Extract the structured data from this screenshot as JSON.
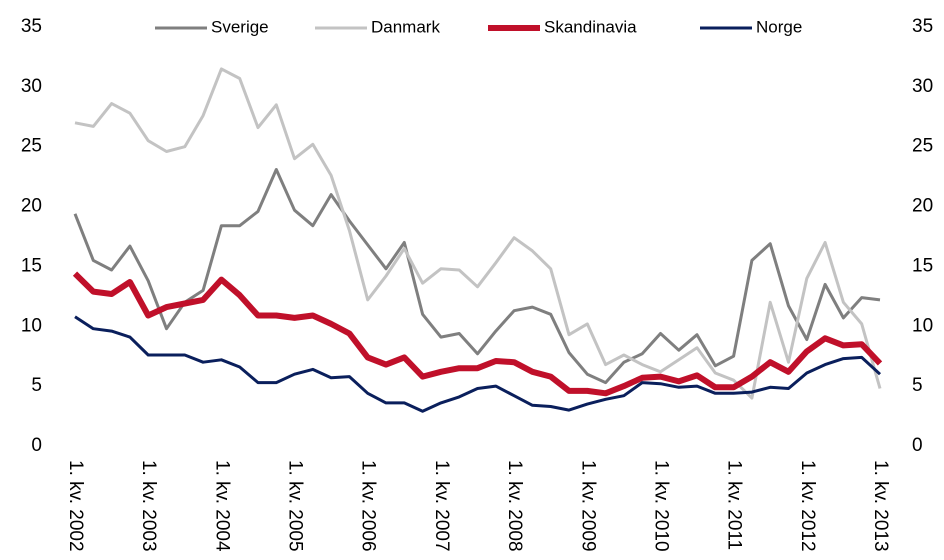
{
  "chart_data": {
    "type": "line",
    "categories": [
      "1. kv. 2002",
      null,
      null,
      null,
      "1. kv. 2003",
      null,
      null,
      null,
      "1. kv. 2004",
      null,
      null,
      null,
      "1. kv. 2005",
      null,
      null,
      null,
      "1. kv. 2006",
      null,
      null,
      null,
      "1. kv. 2007",
      null,
      null,
      null,
      "1. kv. 2008",
      null,
      null,
      null,
      "1. kv. 2009",
      null,
      null,
      null,
      "1. kv. 2010",
      null,
      null,
      null,
      "1. kv. 2011",
      null,
      null,
      null,
      "1. kv. 2012",
      null,
      null,
      null,
      "1. kv. 2013"
    ],
    "series": [
      {
        "name": "Sverige",
        "color": "#7f7f7f",
        "values": [
          19.4,
          15.5,
          14.7,
          16.7,
          13.8,
          9.8,
          12.0,
          13.0,
          18.4,
          18.4,
          19.6,
          23.1,
          19.7,
          18.4,
          21.0,
          18.8,
          16.8,
          14.8,
          17.0,
          11.0,
          9.1,
          9.4,
          7.7,
          9.6,
          11.3,
          11.6,
          11.0,
          7.8,
          6.0,
          5.3,
          7.0,
          7.7,
          9.4,
          8.0,
          9.3,
          6.7,
          7.5,
          15.5,
          16.9,
          11.7,
          8.9,
          13.5,
          10.7,
          12.4,
          12.2
        ]
      },
      {
        "name": "Danmark",
        "color": "#c3c3c3",
        "values": [
          27.0,
          26.7,
          28.6,
          27.8,
          25.5,
          24.6,
          25.0,
          27.6,
          31.5,
          30.7,
          26.6,
          28.5,
          24.0,
          25.2,
          22.6,
          18.0,
          12.2,
          14.2,
          16.5,
          13.6,
          14.8,
          14.7,
          13.3,
          15.3,
          17.4,
          16.3,
          14.8,
          9.3,
          10.2,
          6.8,
          7.6,
          6.8,
          6.2,
          7.2,
          8.2,
          6.1,
          5.5,
          4.0,
          12.0,
          7.0,
          14.0,
          17.0,
          12.0,
          10.2,
          4.8
        ]
      },
      {
        "name": "Skandinavia",
        "color": "#c0102a",
        "values": [
          14.4,
          12.9,
          12.7,
          13.7,
          10.9,
          11.6,
          11.9,
          12.2,
          13.9,
          12.6,
          10.9,
          10.9,
          10.7,
          10.9,
          10.2,
          9.4,
          7.4,
          6.8,
          7.4,
          5.8,
          6.2,
          6.5,
          6.5,
          7.1,
          7.0,
          6.2,
          5.8,
          4.6,
          4.6,
          4.4,
          5.0,
          5.7,
          5.8,
          5.4,
          5.9,
          4.9,
          4.9,
          5.8,
          7.0,
          6.2,
          7.9,
          9.0,
          8.4,
          8.5,
          6.9
        ]
      },
      {
        "name": "Norge",
        "color": "#0a1f5c",
        "values": [
          10.8,
          9.8,
          9.6,
          9.1,
          7.6,
          7.6,
          7.6,
          7.0,
          7.2,
          6.6,
          5.3,
          5.3,
          6.0,
          6.4,
          5.7,
          5.8,
          4.4,
          3.6,
          3.6,
          2.9,
          3.6,
          4.1,
          4.8,
          5.0,
          4.2,
          3.4,
          3.3,
          3.0,
          3.5,
          3.9,
          4.2,
          5.3,
          5.2,
          4.9,
          5.0,
          4.4,
          4.4,
          4.5,
          4.9,
          4.8,
          6.1,
          6.8,
          7.3,
          7.4,
          6.0
        ]
      }
    ],
    "ylim": [
      0,
      35
    ],
    "yticks": [
      0,
      5,
      10,
      15,
      20,
      25,
      30,
      35
    ],
    "y2lim": [
      0,
      35
    ],
    "y2ticks": [
      0,
      5,
      10,
      15,
      20,
      25,
      30,
      35
    ],
    "legend": "top",
    "grid": false
  }
}
